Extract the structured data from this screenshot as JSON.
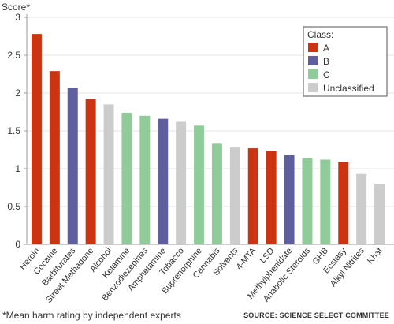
{
  "colors": {
    "A": "#cc3311",
    "B": "#5f5f9f",
    "C": "#8fcc9a",
    "Unclassified": "#cccccc",
    "axis": "#999999",
    "grid": "#e6e6e6"
  },
  "footnote": "*Mean harm rating by independent experts",
  "source": "SOURCE: SCIENCE SELECT COMMITTEE",
  "chart_data": {
    "type": "bar",
    "ylabel": "Score*",
    "ylim": [
      0,
      3
    ],
    "yticks": [
      "0",
      "0.5",
      "1",
      "1.5",
      "2",
      "2.5",
      "3"
    ],
    "grid": true,
    "legend": {
      "title": "Class:",
      "placement": "top-right",
      "entries": [
        "A",
        "B",
        "C",
        "Unclassified"
      ]
    },
    "categories": [
      "Heroin",
      "Cocaine",
      "Barbiturates",
      "Street Methadone",
      "Alcohol",
      "Ketamine",
      "Benzodiezepines",
      "Amphetamine",
      "Tobacco",
      "Buprenorphine",
      "Cannabis",
      "Solvents",
      "4-MTA",
      "LSD",
      "Methylphenidate",
      "Anabolic Steroids",
      "GHB",
      "Ecstasy",
      "Alkyl Nitrites",
      "Khat"
    ],
    "values": [
      2.78,
      2.29,
      2.07,
      1.92,
      1.85,
      1.74,
      1.7,
      1.66,
      1.62,
      1.57,
      1.33,
      1.28,
      1.27,
      1.23,
      1.18,
      1.14,
      1.12,
      1.09,
      0.93,
      0.8
    ],
    "classes": [
      "A",
      "A",
      "B",
      "A",
      "Unclassified",
      "C",
      "C",
      "B",
      "Unclassified",
      "C",
      "C",
      "Unclassified",
      "A",
      "A",
      "B",
      "C",
      "C",
      "A",
      "Unclassified",
      "Unclassified"
    ]
  }
}
